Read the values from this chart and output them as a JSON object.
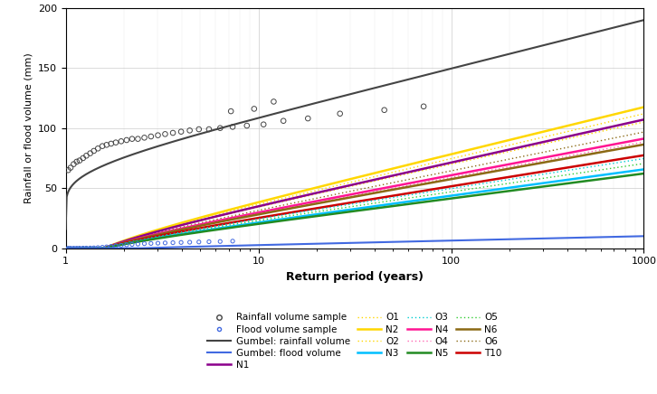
{
  "ylabel": "Rainfall or flood volume (mm)",
  "xlabel": "Return period (years)",
  "xlim": [
    1,
    1000
  ],
  "ylim": [
    0,
    200
  ],
  "yticks": [
    0,
    50,
    100,
    150,
    200
  ],
  "gumbel_rainfall": {
    "color": "#444444",
    "lw": 1.5,
    "u": 69.0,
    "alpha": 17.5
  },
  "gumbel_flood": {
    "color": "#4169E1",
    "lw": 1.5,
    "u": -1.0,
    "alpha": 1.6
  },
  "rainfall_sample": {
    "x": [
      1.03,
      1.06,
      1.1,
      1.14,
      1.18,
      1.23,
      1.28,
      1.34,
      1.4,
      1.47,
      1.55,
      1.63,
      1.72,
      1.82,
      1.94,
      2.07,
      2.21,
      2.37,
      2.56,
      2.77,
      3.01,
      3.28,
      3.6,
      3.97,
      4.4,
      4.91,
      5.54,
      6.33,
      7.35,
      8.71,
      10.63,
      13.48,
      18.07,
      26.5,
      45.0,
      72.0,
      7.2,
      9.5,
      12.0
    ],
    "y": [
      65,
      67,
      70,
      72,
      73,
      75,
      77,
      79,
      81,
      83,
      85,
      86,
      87,
      88,
      89,
      90,
      91,
      91,
      92,
      93,
      94,
      95,
      96,
      97,
      98,
      99,
      99,
      100,
      101,
      102,
      103,
      106,
      108,
      112,
      115,
      118,
      114,
      116,
      122
    ],
    "color": "#444444",
    "size": 4
  },
  "flood_sample": {
    "x": [
      1.03,
      1.06,
      1.1,
      1.14,
      1.18,
      1.23,
      1.28,
      1.34,
      1.4,
      1.47,
      1.55,
      1.63,
      1.72,
      1.82,
      1.94,
      2.07,
      2.21,
      2.37,
      2.56,
      2.77,
      3.01,
      3.28,
      3.6,
      3.97,
      4.4,
      4.91,
      5.54,
      6.33,
      7.35
    ],
    "y": [
      0.0,
      0.0,
      0.0,
      0.0,
      0.05,
      0.1,
      0.15,
      0.2,
      0.3,
      0.5,
      0.8,
      1.1,
      1.5,
      2.0,
      2.4,
      2.8,
      3.2,
      3.5,
      3.8,
      4.0,
      4.2,
      4.4,
      4.6,
      4.8,
      5.0,
      5.2,
      5.4,
      5.6,
      5.9
    ],
    "color": "#4169E1",
    "size": 3
  },
  "scenarios": [
    {
      "name": "N2",
      "color": "#FFD700",
      "lw": 1.8,
      "dotted": false,
      "u": 0.0,
      "alpha": 17.0
    },
    {
      "name": "O1",
      "color": "#FFD700",
      "lw": 1.0,
      "dotted": true,
      "u": 0.0,
      "alpha": 16.2
    },
    {
      "name": "O2",
      "color": "#FFD700",
      "lw": 1.0,
      "dotted": true,
      "u": 0.0,
      "alpha": 15.2
    },
    {
      "name": "N1",
      "color": "#8B008B",
      "lw": 1.8,
      "dotted": false,
      "u": 0.0,
      "alpha": 15.5
    },
    {
      "name": "O6",
      "color": "#8B6914",
      "lw": 1.0,
      "dotted": true,
      "u": 0.0,
      "alpha": 14.0
    },
    {
      "name": "N4",
      "color": "#FF1493",
      "lw": 1.8,
      "dotted": false,
      "u": 0.0,
      "alpha": 13.2
    },
    {
      "name": "O4",
      "color": "#FF69B4",
      "lw": 1.0,
      "dotted": true,
      "u": 0.0,
      "alpha": 12.8
    },
    {
      "name": "N6",
      "color": "#8B6914",
      "lw": 1.8,
      "dotted": false,
      "u": 0.0,
      "alpha": 12.5
    },
    {
      "name": "T10",
      "color": "#CC0000",
      "lw": 1.8,
      "dotted": false,
      "u": 0.0,
      "alpha": 11.2
    },
    {
      "name": "O3",
      "color": "#00CED1",
      "lw": 1.0,
      "dotted": true,
      "u": 0.0,
      "alpha": 10.8
    },
    {
      "name": "O5",
      "color": "#32CD32",
      "lw": 1.0,
      "dotted": true,
      "u": 0.0,
      "alpha": 10.2
    },
    {
      "name": "N3",
      "color": "#00BFFF",
      "lw": 1.8,
      "dotted": false,
      "u": 0.0,
      "alpha": 9.5
    },
    {
      "name": "N5",
      "color": "#228B22",
      "lw": 1.8,
      "dotted": false,
      "u": 0.0,
      "alpha": 9.0
    }
  ]
}
